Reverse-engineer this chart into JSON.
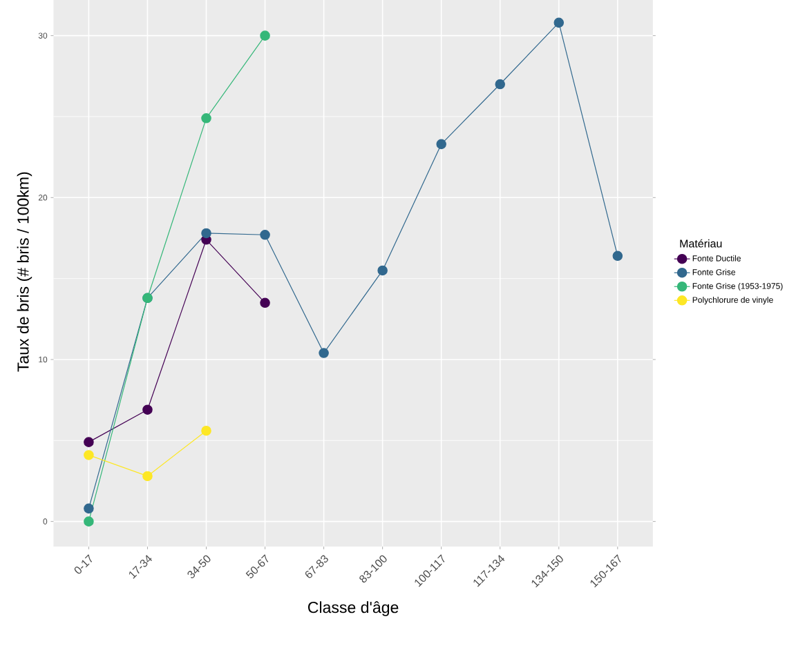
{
  "chart_data": {
    "type": "line",
    "xlabel": "Classe d'âge",
    "ylabel": "Taux de bris (# bris / 100km)",
    "legend_title": "Matériau",
    "categories": [
      "0-17",
      "17-34",
      "34-50",
      "50-67",
      "67-83",
      "83-100",
      "100-117",
      "117-134",
      "134-150",
      "150-167"
    ],
    "series": [
      {
        "name": "Fonte Ductile",
        "color": "#440154",
        "values": [
          4.9,
          6.9,
          17.4,
          13.5,
          null,
          null,
          null,
          null,
          null,
          null
        ]
      },
      {
        "name": "Fonte Grise",
        "color": "#31688e",
        "values": [
          0.8,
          13.8,
          17.8,
          17.7,
          10.4,
          15.5,
          23.3,
          27.0,
          30.8,
          16.4
        ]
      },
      {
        "name": "Fonte Grise (1953-1975)",
        "color": "#35b779",
        "values": [
          0,
          13.8,
          24.9,
          30.0,
          null,
          null,
          null,
          null,
          null,
          null
        ]
      },
      {
        "name": "Polychlorure de vinyle",
        "color": "#fde725",
        "values": [
          4.1,
          2.8,
          5.6,
          null,
          null,
          null,
          null,
          null,
          null,
          null
        ]
      }
    ],
    "ylim": [
      -1.55,
      32.4
    ],
    "yticks": [
      0,
      10,
      20,
      30
    ],
    "grid": true,
    "legend": "right",
    "marker": "circle",
    "line_style": "solid"
  }
}
